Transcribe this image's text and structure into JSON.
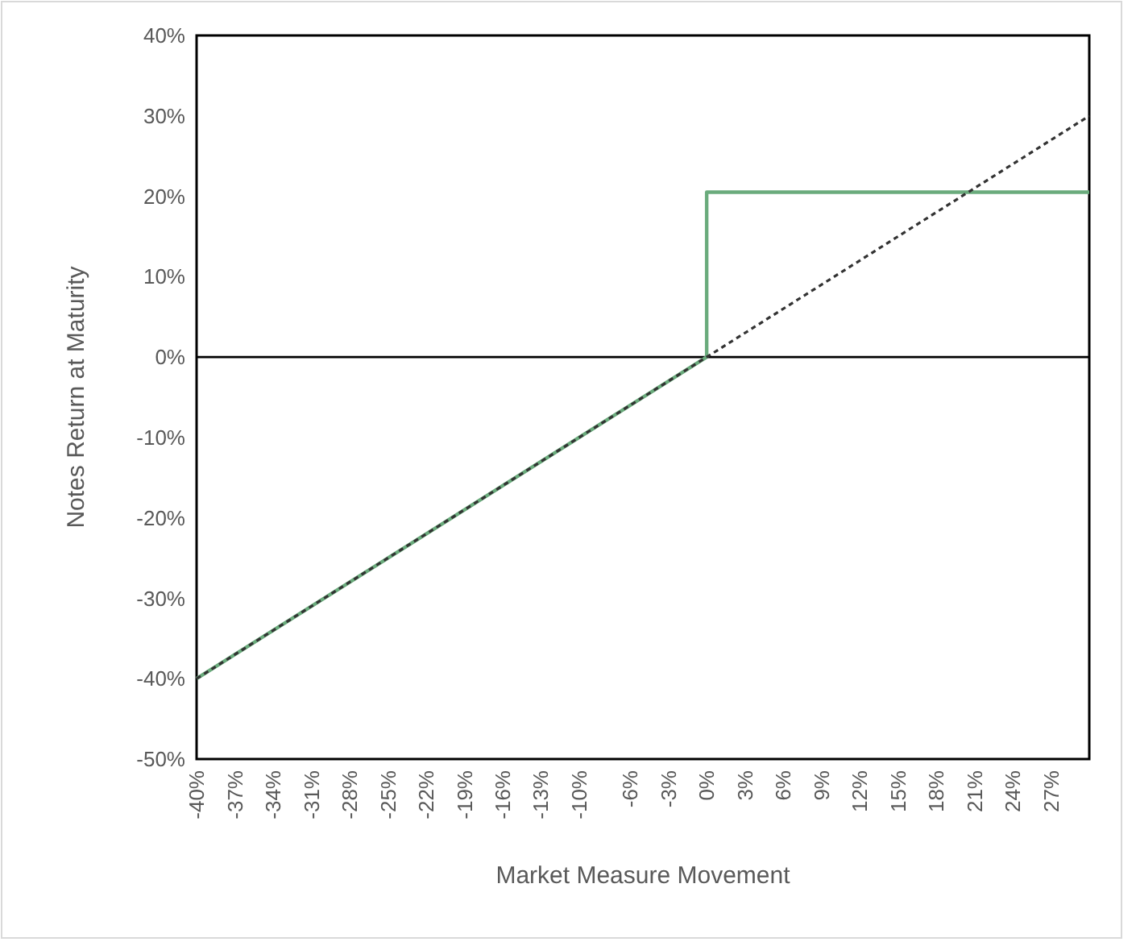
{
  "chart_data": {
    "type": "line",
    "xlabel": "Market Measure Movement",
    "ylabel": "Notes Return at Maturity",
    "xlim": [
      -40,
      30
    ],
    "ylim": [
      -50,
      40
    ],
    "xticks": [
      {
        "value": -40,
        "label": "-40%"
      },
      {
        "value": -37,
        "label": "-37%"
      },
      {
        "value": -34,
        "label": "-34%"
      },
      {
        "value": -31,
        "label": "-31%"
      },
      {
        "value": -28,
        "label": "-28%"
      },
      {
        "value": -25,
        "label": "-25%"
      },
      {
        "value": -22,
        "label": "-22%"
      },
      {
        "value": -19,
        "label": "-19%"
      },
      {
        "value": -16,
        "label": "-16%"
      },
      {
        "value": -13,
        "label": "-13%"
      },
      {
        "value": -10,
        "label": "-10%"
      },
      {
        "value": -6,
        "label": "-6%"
      },
      {
        "value": -3,
        "label": "-3%"
      },
      {
        "value": 0,
        "label": "0%"
      },
      {
        "value": 3,
        "label": "3%"
      },
      {
        "value": 6,
        "label": "6%"
      },
      {
        "value": 9,
        "label": "9%"
      },
      {
        "value": 12,
        "label": "12%"
      },
      {
        "value": 15,
        "label": "15%"
      },
      {
        "value": 18,
        "label": "18%"
      },
      {
        "value": 21,
        "label": "21%"
      },
      {
        "value": 24,
        "label": "24%"
      },
      {
        "value": 27,
        "label": "27%"
      }
    ],
    "yticks": [
      {
        "value": -50,
        "label": "-50%"
      },
      {
        "value": -40,
        "label": "-40%"
      },
      {
        "value": -30,
        "label": "-30%"
      },
      {
        "value": -20,
        "label": "-20%"
      },
      {
        "value": -10,
        "label": "-10%"
      },
      {
        "value": 0,
        "label": "0%"
      },
      {
        "value": 10,
        "label": "10%"
      },
      {
        "value": 20,
        "label": "20%"
      },
      {
        "value": 30,
        "label": "30%"
      },
      {
        "value": 40,
        "label": "40%"
      }
    ],
    "grid": false,
    "ref_lines": [
      {
        "axis": "y",
        "value": 0,
        "color": "#000000",
        "line_style": "solid"
      }
    ],
    "series": [
      {
        "color": "#6aab7c",
        "line_style": "solid",
        "x": [
          -40,
          0,
          0,
          30
        ],
        "values": [
          -40,
          0,
          20.5,
          20.5
        ]
      },
      {
        "color": "#333333",
        "line_style": "dotted",
        "x": [
          -40,
          30
        ],
        "values": [
          -40,
          30
        ]
      }
    ]
  }
}
